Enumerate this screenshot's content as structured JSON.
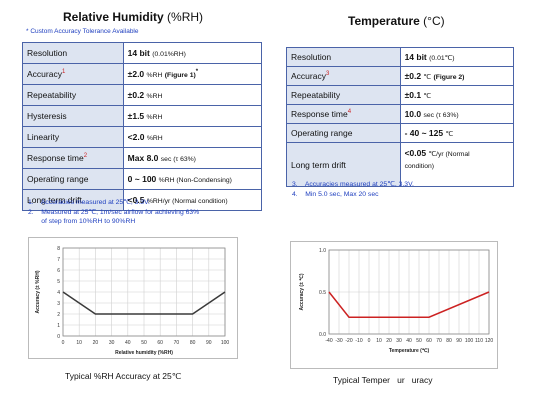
{
  "humidity": {
    "title": "Relative Humidity",
    "unit": "(%RH)",
    "custom_note": "* Custom Accuracy Tolerance Available",
    "rows": [
      {
        "param": "Resolution",
        "param_sup": "",
        "value": "14 bit",
        "detail": "(0.01%RH)"
      },
      {
        "param": "Accuracy",
        "param_sup": "1",
        "value": "±2.0",
        "detail": "%RH",
        "extra": "(Figure 1)",
        "extra_mark": "*"
      },
      {
        "param": "Repeatability",
        "param_sup": "",
        "value": "±0.2",
        "detail": "%RH"
      },
      {
        "param": "Hysteresis",
        "param_sup": "",
        "value": "±1.5",
        "detail": "%RH"
      },
      {
        "param": "Linearity",
        "param_sup": "",
        "value": "<2.0",
        "detail": "%RH"
      },
      {
        "param": "Response time",
        "param_sup": "2",
        "value": "Max 8.0",
        "detail": "sec (τ 63%)"
      },
      {
        "param": "Operating range",
        "param_sup": "",
        "value": "0 ~ 100",
        "detail": "%RH (Non-Condensing)"
      },
      {
        "param": "Long term drift",
        "param_sup": "",
        "value": "<0.5",
        "detail": "%RH/yr (Normal condition)"
      }
    ],
    "notes": [
      "1.    Accuracies measured at 25℃, 3.3V.",
      "2.    Measured at 25℃, 1m/sec airflow for achieving 63%",
      "       of step from 10%RH to 90%RH"
    ],
    "caption": "Typical %RH Accuracy at 25℃"
  },
  "temperature": {
    "title": "Temperature",
    "unit": "(°C)",
    "rows": [
      {
        "param": "Resolution",
        "param_sup": "",
        "value": "14 bit",
        "detail": "(0.01℃)"
      },
      {
        "param": "Accuracy",
        "param_sup": "3",
        "value": "±0.2",
        "detail": "℃",
        "extra": "(Figure 2)"
      },
      {
        "param": "Repeatability",
        "param_sup": "",
        "value": "±0.1",
        "detail": "℃"
      },
      {
        "param": "Response time",
        "param_sup": "4",
        "value": "10.0",
        "detail": "sec (τ 63%)"
      },
      {
        "param": "Operating range",
        "param_sup": "",
        "value": "- 40 ~ 125",
        "detail": "℃"
      },
      {
        "param": "Long term drift",
        "param_sup": "",
        "value": "<0.05",
        "detail": "℃/yr (Normal",
        "detail2": "condition)"
      }
    ],
    "notes": [
      "3.    Accuracies measured at 25℃, 3.3V.",
      "4.    Min 5.0 sec, Max 20 sec"
    ],
    "caption": "Typical Temper   ur   uracy"
  },
  "chart_data": [
    {
      "type": "line",
      "xlabel": "Relative humidity (%RH)",
      "ylabel": "Accuracy (± %RH)",
      "x_ticks": [
        0,
        10,
        20,
        30,
        40,
        50,
        60,
        70,
        80,
        90,
        100
      ],
      "y_ticks": [
        0,
        1,
        2,
        3,
        4,
        5,
        6,
        7,
        8
      ],
      "xlim": [
        0,
        100
      ],
      "ylim": [
        0,
        8
      ],
      "grid": true,
      "series": [
        {
          "x": [
            0,
            20,
            80,
            100
          ],
          "y": [
            4,
            2,
            2,
            4
          ],
          "color": "#3a3a3a"
        }
      ]
    },
    {
      "type": "line",
      "xlabel": "Temperature (℃)",
      "ylabel": "Accuracy (± ℃)",
      "x_ticks": [
        -40,
        -30,
        -20,
        -10,
        0,
        10,
        20,
        30,
        40,
        50,
        60,
        70,
        80,
        90,
        100,
        110,
        120
      ],
      "y_ticks": [
        "0.0",
        "0.5",
        "1.0"
      ],
      "xlim": [
        -40,
        120
      ],
      "ylim": [
        0,
        1.0
      ],
      "grid": true,
      "series": [
        {
          "x": [
            -40,
            -20,
            60,
            120
          ],
          "y": [
            0.5,
            0.2,
            0.2,
            0.5
          ],
          "color": "#cc2222"
        }
      ]
    }
  ]
}
